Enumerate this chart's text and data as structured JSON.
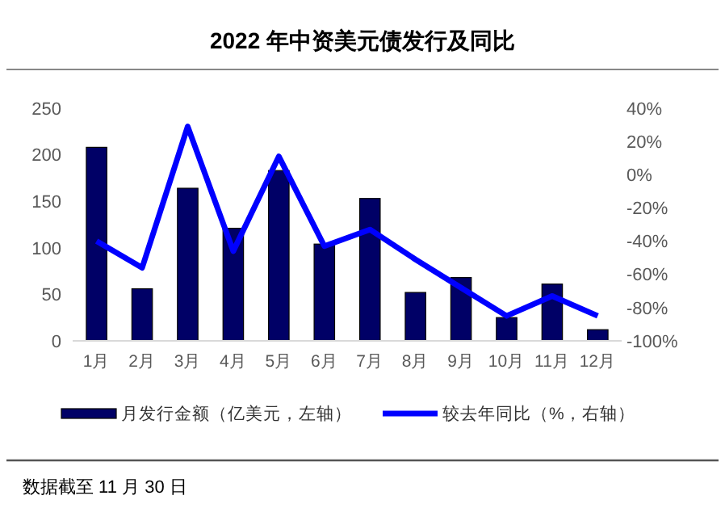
{
  "chart_data": {
    "type": "bar",
    "title": "2022 年中资美元债发行及同比",
    "categories": [
      "1月",
      "2月",
      "3月",
      "4月",
      "5月",
      "6月",
      "7月",
      "8月",
      "9月",
      "10月",
      "11月",
      "12月"
    ],
    "series": [
      {
        "name": "月发行金额（亿美元，左轴）",
        "color": "#000066",
        "values": [
          208,
          56,
          164,
          121,
          183,
          104,
          153,
          52,
          68,
          25,
          61,
          12
        ]
      },
      {
        "name": "较去年同比（%，右轴）",
        "type": "line",
        "axis": "y2",
        "color": "#0000ff",
        "values": [
          -40,
          -56,
          29,
          -46,
          11,
          -43,
          -33,
          -51,
          -68,
          -85,
          -73,
          -85
        ]
      }
    ],
    "ylim": [
      0,
      250
    ],
    "yticks": [
      0,
      50,
      100,
      150,
      200,
      250
    ],
    "y2lim": [
      -100,
      40
    ],
    "y2ticks": [
      {
        "value": -100,
        "label": "-100%"
      },
      {
        "value": -80,
        "label": "-80%"
      },
      {
        "value": -60,
        "label": "-60%"
      },
      {
        "value": -40,
        "label": "-40%"
      },
      {
        "value": -20,
        "label": "-20%"
      },
      {
        "value": 0,
        "label": "0%"
      },
      {
        "value": 20,
        "label": "20%"
      },
      {
        "value": 40,
        "label": "40%"
      }
    ],
    "legend": "bottom",
    "grid": false,
    "marker": "none",
    "line_style": "solid",
    "annotations": [
      "数据截至 11 月 30 日"
    ]
  }
}
